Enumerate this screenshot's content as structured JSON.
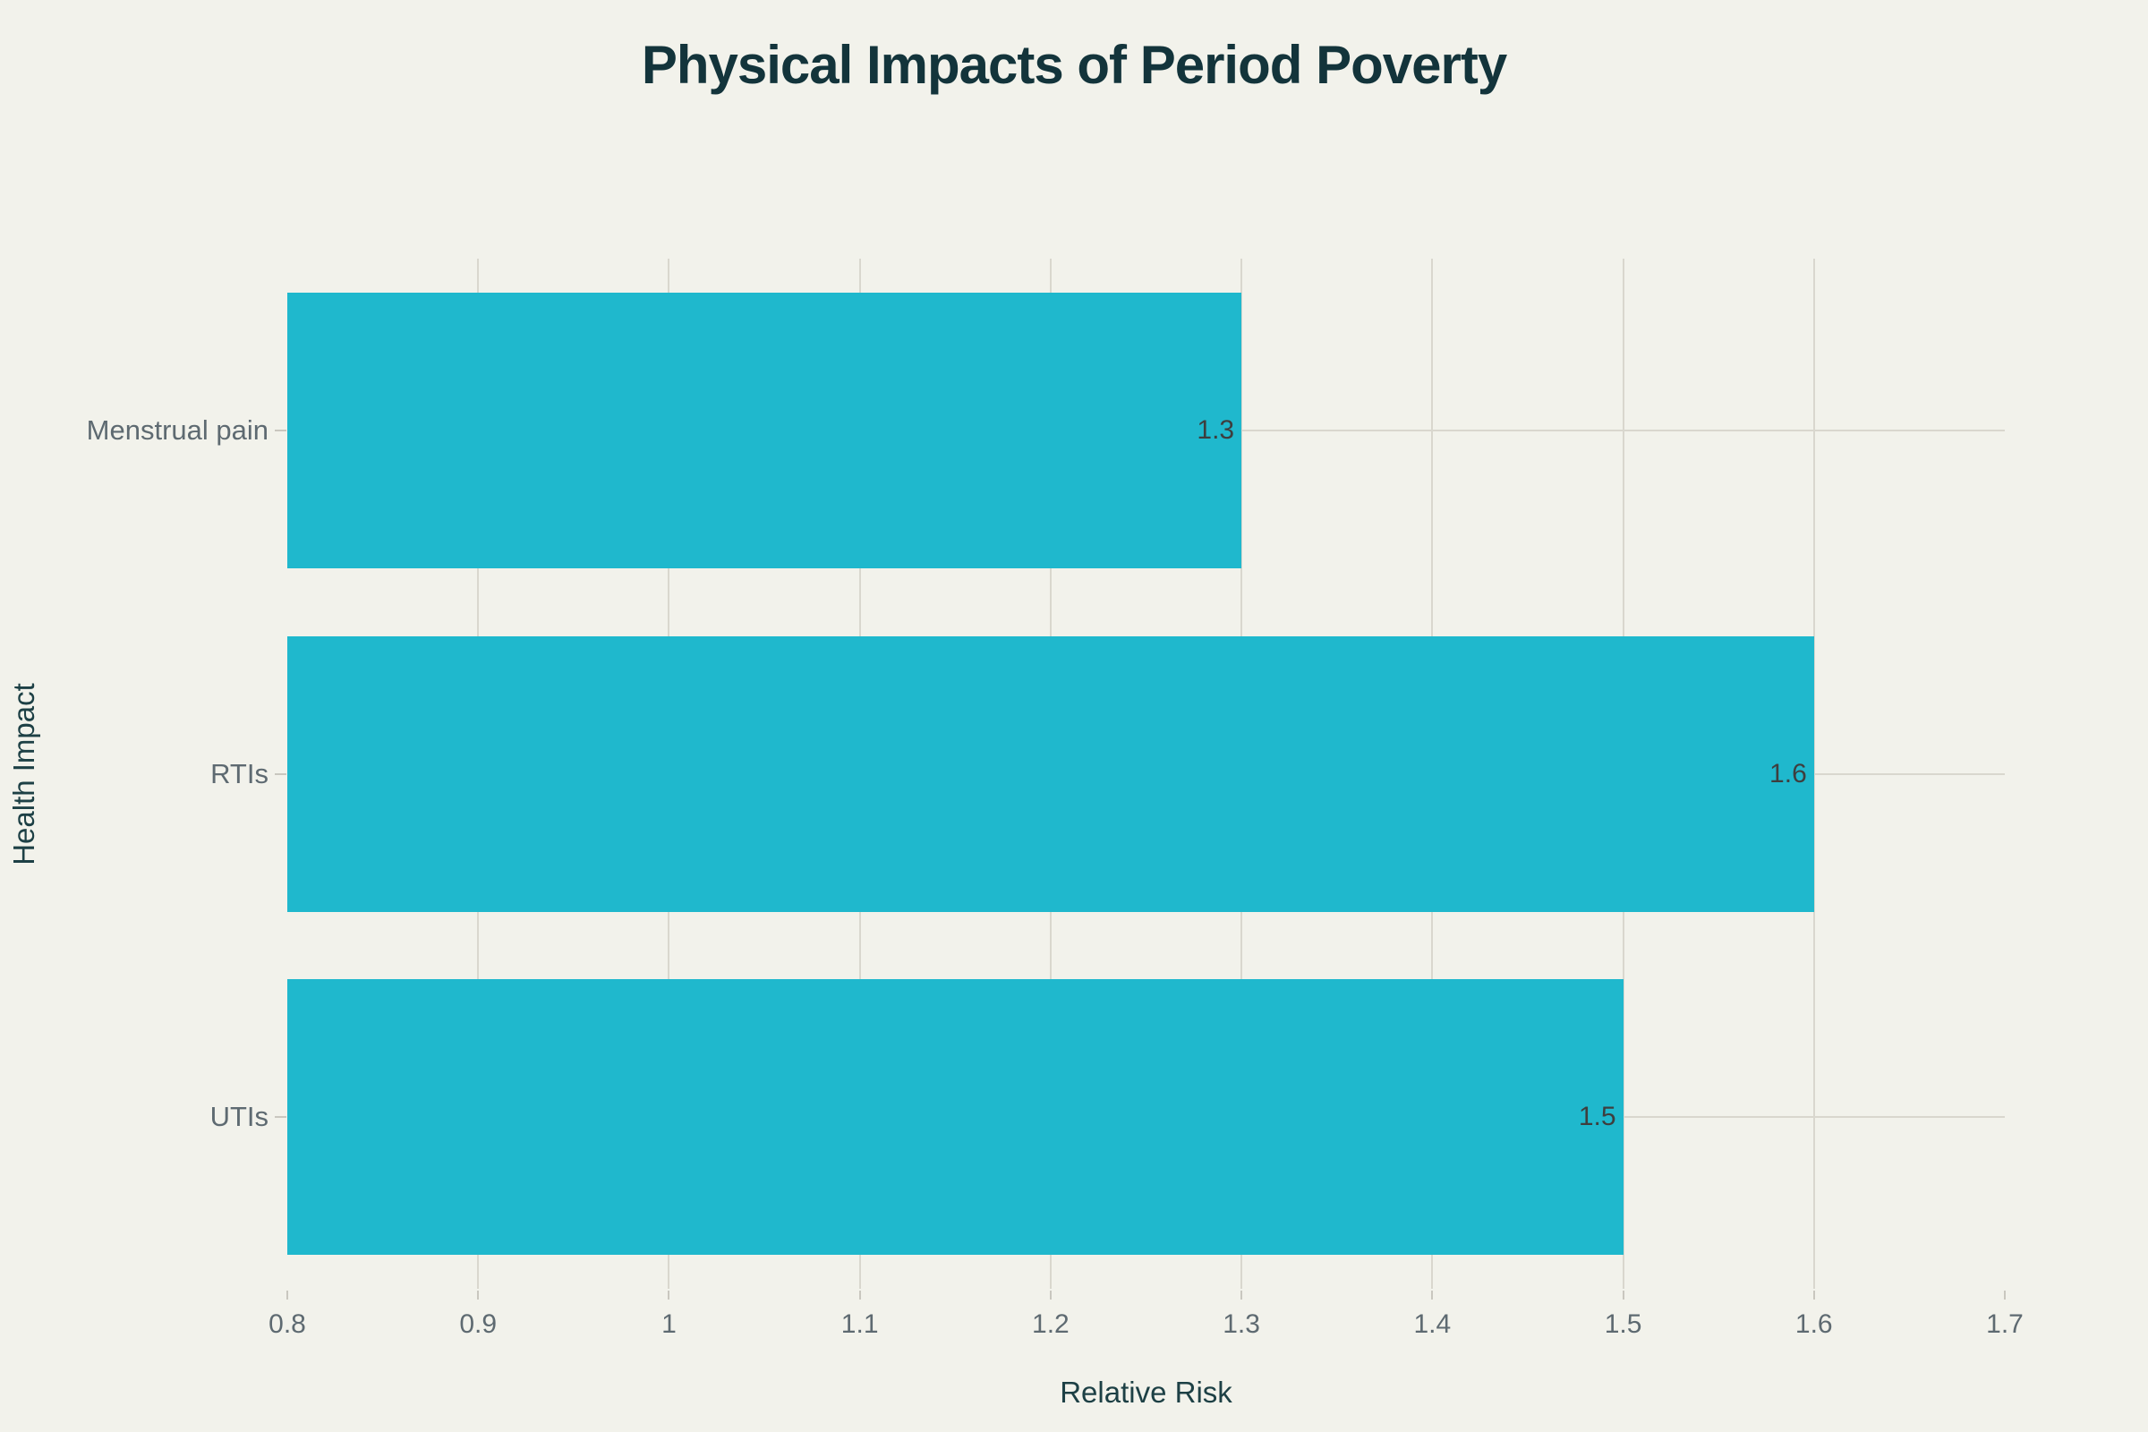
{
  "chart_data": {
    "type": "bar",
    "orientation": "horizontal",
    "title": "Physical Impacts of Period Poverty",
    "categories": [
      "Menstrual pain",
      "RTIs",
      "UTIs"
    ],
    "values": [
      1.3,
      1.6,
      1.5
    ],
    "value_labels": [
      "1.3",
      "1.6",
      "1.5"
    ],
    "xlabel": "Relative Risk",
    "ylabel": "Health Impact",
    "xlim": [
      0.8,
      1.7
    ],
    "xticks": [
      0.8,
      0.9,
      1,
      1.1,
      1.2,
      1.3,
      1.4,
      1.5,
      1.6,
      1.7
    ],
    "xtick_labels": [
      "0.8",
      "0.9",
      "1",
      "1.1",
      "1.2",
      "1.3",
      "1.4",
      "1.5",
      "1.6",
      "1.7"
    ],
    "grid": {
      "vertical_gridlines": true,
      "horizontal_category_gridlines": true
    },
    "legend": "none",
    "colors": {
      "bar": "#1FB8CD",
      "background": "#F2F2EB",
      "gridline": "#D9D7CE",
      "tick_mark": "#C9C7BF",
      "tick_label": "#5E6A71",
      "category_label": "#5E6A71",
      "value_label": "#3E3E3E",
      "title": "#13343B",
      "axis_title": "#1D4045"
    }
  }
}
